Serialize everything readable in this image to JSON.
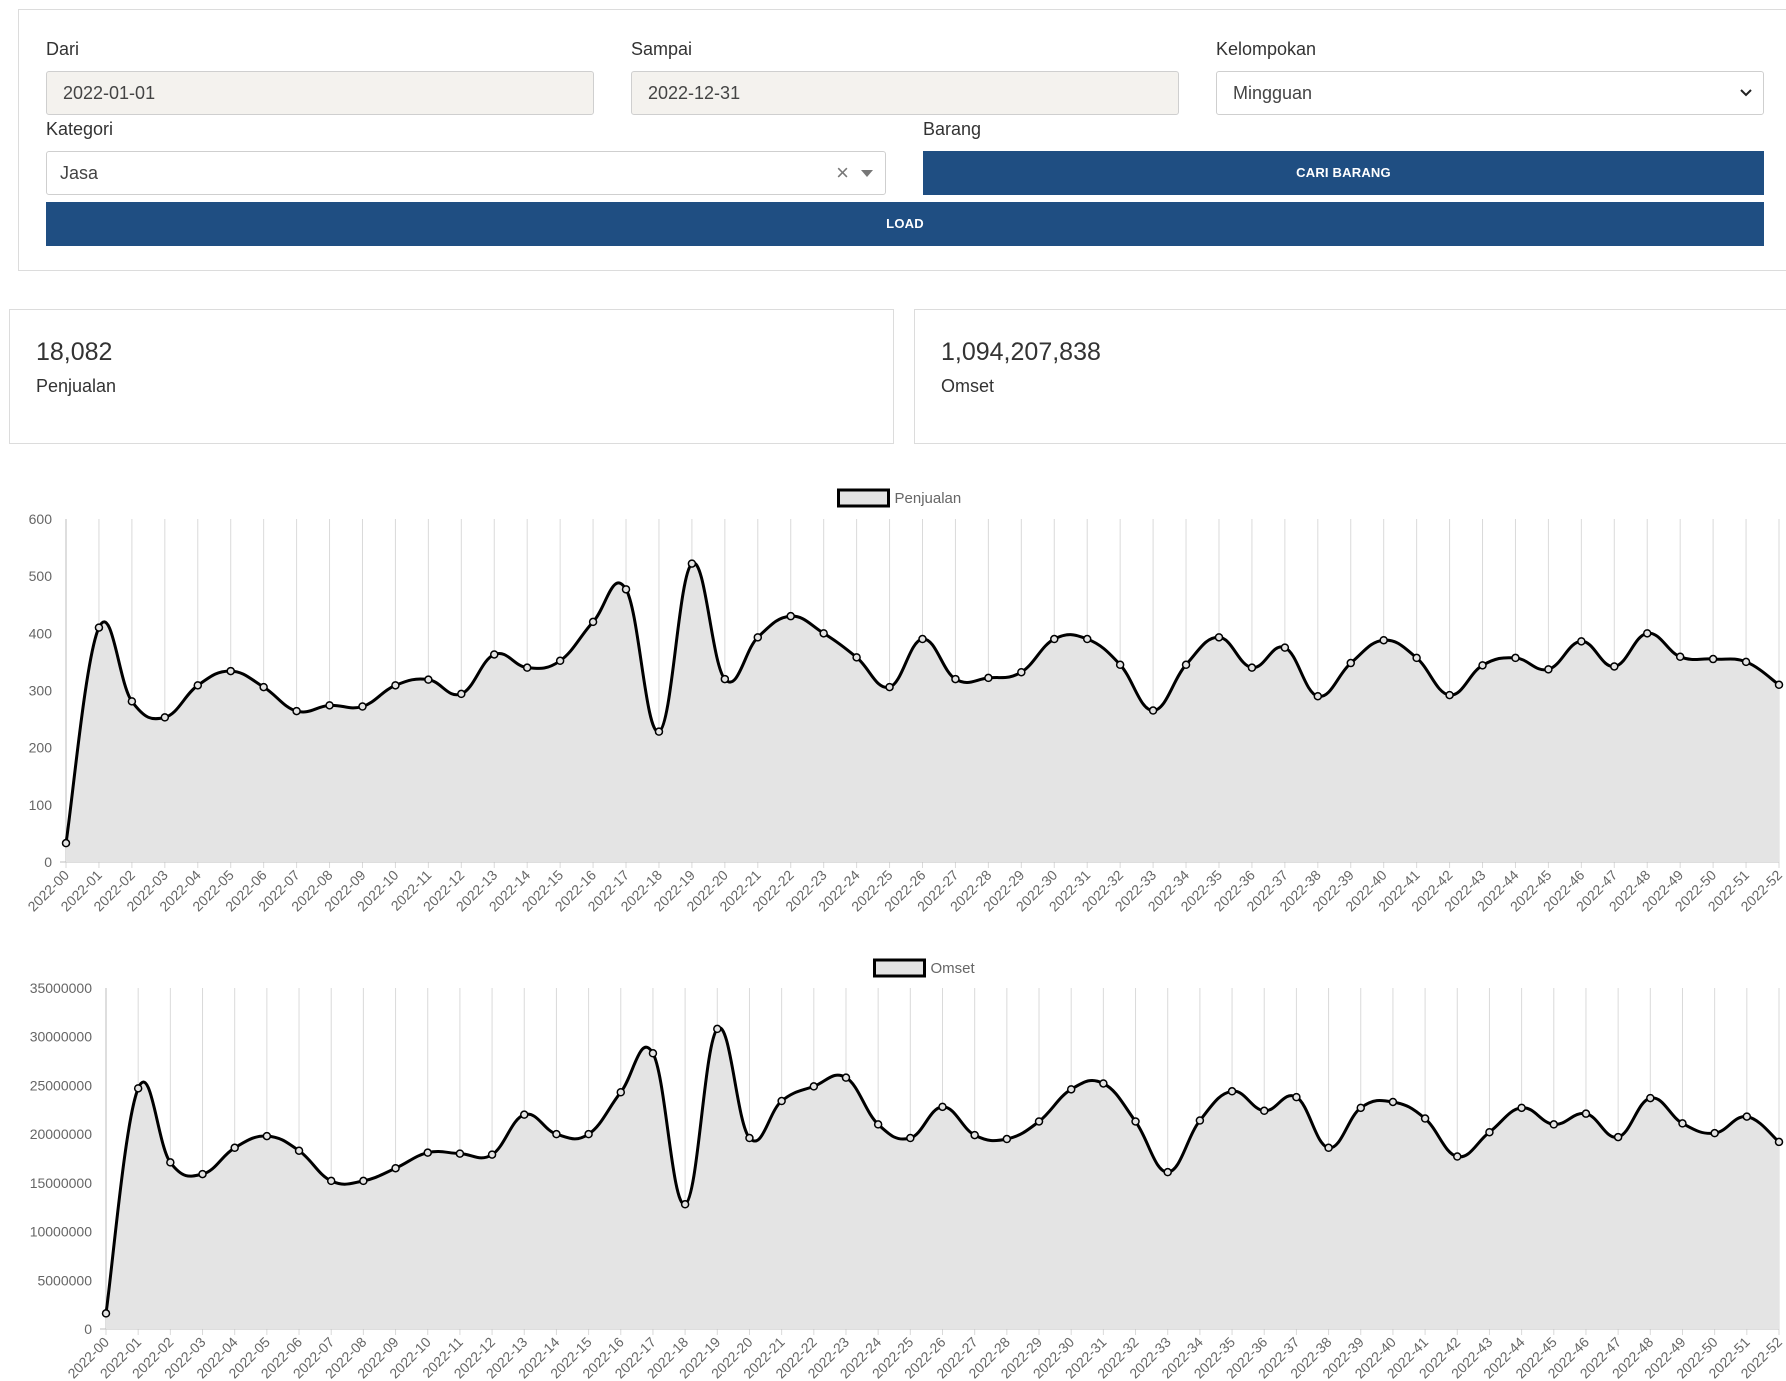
{
  "filters": {
    "dari": {
      "label": "Dari",
      "value": "2022-01-01"
    },
    "sampai": {
      "label": "Sampai",
      "value": "2022-12-31"
    },
    "kelompokan": {
      "label": "Kelompokan",
      "value": "Mingguan"
    },
    "kategori": {
      "label": "Kategori",
      "value": "Jasa"
    },
    "barang": {
      "label": "Barang",
      "button": "CARI BARANG"
    },
    "load_button": "LOAD"
  },
  "stats": {
    "penjualan": {
      "value": "18,082",
      "label": "Penjualan"
    },
    "omset": {
      "value": "1,094,207,838",
      "label": "Omset"
    }
  },
  "icons": {
    "clear": "clear-icon",
    "dropdown": "chevron-down-icon"
  },
  "colors": {
    "primary": "#1f4e82",
    "fill": "#e4e4e4",
    "line": "#000000"
  },
  "chart_data": [
    {
      "type": "area",
      "legend": "Penjualan",
      "legend_position": "top-center",
      "grid": true,
      "ylim": [
        0,
        600
      ],
      "yticks": [
        0,
        100,
        200,
        300,
        400,
        500,
        600
      ],
      "categories": [
        "2022-00",
        "2022-01",
        "2022-02",
        "2022-03",
        "2022-04",
        "2022-05",
        "2022-06",
        "2022-07",
        "2022-08",
        "2022-09",
        "2022-10",
        "2022-11",
        "2022-12",
        "2022-13",
        "2022-14",
        "2022-15",
        "2022-16",
        "2022-17",
        "2022-18",
        "2022-19",
        "2022-20",
        "2022-21",
        "2022-22",
        "2022-23",
        "2022-24",
        "2022-25",
        "2022-26",
        "2022-27",
        "2022-28",
        "2022-29",
        "2022-30",
        "2022-31",
        "2022-32",
        "2022-33",
        "2022-34",
        "2022-35",
        "2022-36",
        "2022-37",
        "2022-38",
        "2022-39",
        "2022-40",
        "2022-41",
        "2022-42",
        "2022-43",
        "2022-44",
        "2022-45",
        "2022-46",
        "2022-47",
        "2022-48",
        "2022-49",
        "2022-50",
        "2022-51",
        "2022-52"
      ],
      "series": [
        {
          "name": "Penjualan",
          "values": [
            33,
            410,
            281,
            253,
            309,
            334,
            306,
            264,
            274,
            272,
            309,
            319,
            294,
            363,
            340,
            352,
            420,
            477,
            228,
            522,
            320,
            393,
            430,
            400,
            358,
            306,
            390,
            320,
            322,
            332,
            390,
            390,
            345,
            265,
            345,
            393,
            340,
            375,
            290,
            348,
            388,
            357,
            292,
            344,
            357,
            337,
            386,
            342,
            400,
            359,
            355,
            350,
            310
          ]
        }
      ]
    },
    {
      "type": "area",
      "legend": "Omset",
      "legend_position": "top-center",
      "grid": true,
      "ylim": [
        0,
        35000000
      ],
      "yticks": [
        0,
        5000000,
        10000000,
        15000000,
        20000000,
        25000000,
        30000000,
        35000000
      ],
      "categories": [
        "2022-00",
        "2022-01",
        "2022-02",
        "2022-03",
        "2022-04",
        "2022-05",
        "2022-06",
        "2022-07",
        "2022-08",
        "2022-09",
        "2022-10",
        "2022-11",
        "2022-12",
        "2022-13",
        "2022-14",
        "2022-15",
        "2022-16",
        "2022-17",
        "2022-18",
        "2022-19",
        "2022-20",
        "2022-21",
        "2022-22",
        "2022-23",
        "2022-24",
        "2022-25",
        "2022-26",
        "2022-27",
        "2022-28",
        "2022-29",
        "2022-30",
        "2022-31",
        "2022-32",
        "2022-33",
        "2022-34",
        "2022-35",
        "2022-36",
        "2022-37",
        "2022-38",
        "2022-39",
        "2022-40",
        "2022-41",
        "2022-42",
        "2022-43",
        "2022-44",
        "2022-45",
        "2022-46",
        "2022-47",
        "2022-48",
        "2022-49",
        "2022-50",
        "2022-51",
        "2022-52"
      ],
      "series": [
        {
          "name": "Omset",
          "values": [
            1600000,
            24700000,
            17100000,
            15900000,
            18600000,
            19800000,
            18300000,
            15200000,
            15200000,
            16500000,
            18100000,
            18000000,
            17900000,
            22000000,
            20000000,
            20000000,
            24300000,
            28300000,
            12800000,
            30800000,
            19600000,
            23400000,
            24900000,
            25800000,
            21000000,
            19600000,
            22800000,
            19900000,
            19500000,
            21300000,
            24600000,
            25200000,
            21300000,
            16100000,
            21400000,
            24400000,
            22400000,
            23800000,
            18600000,
            22700000,
            23300000,
            21600000,
            17700000,
            20200000,
            22700000,
            21000000,
            22100000,
            19700000,
            23700000,
            21100000,
            20100000,
            21800000,
            19200000
          ]
        }
      ]
    }
  ]
}
